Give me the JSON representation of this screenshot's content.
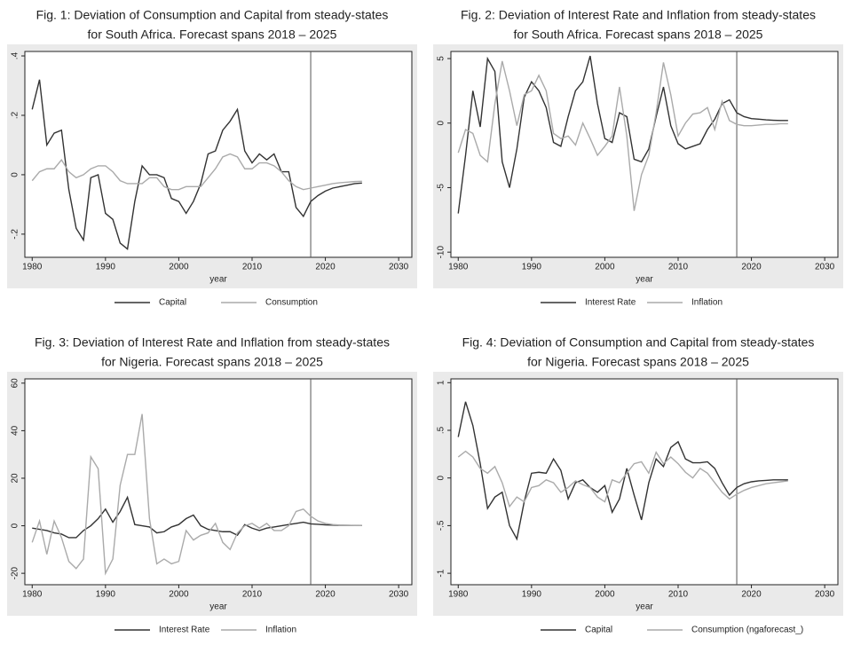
{
  "chart_data": [
    {
      "type": "line",
      "title": [
        "Fig. 1: Deviation of Consumption and Capital from steady-states",
        "for South Africa. Forecast spans 2018 – 2025"
      ],
      "xlabel": "year",
      "x": [
        1980,
        1981,
        1982,
        1983,
        1984,
        1985,
        1986,
        1987,
        1988,
        1989,
        1990,
        1991,
        1992,
        1993,
        1994,
        1995,
        1996,
        1997,
        1998,
        1999,
        2000,
        2001,
        2002,
        2003,
        2004,
        2005,
        2006,
        2007,
        2008,
        2009,
        2010,
        2011,
        2012,
        2013,
        2014,
        2015,
        2016,
        2017,
        2018,
        2019,
        2020,
        2021,
        2022,
        2023,
        2024,
        2025
      ],
      "xlim": [
        1979,
        2031.8
      ],
      "xticks": [
        1980,
        1990,
        2000,
        2010,
        2020,
        2030
      ],
      "ylim": [
        -0.278,
        0.415
      ],
      "yticks": [
        {
          "value": 0.4,
          "label": ".4"
        },
        {
          "value": 0.2,
          "label": ".2"
        },
        0,
        {
          "value": -0.2,
          "label": "-.2"
        }
      ],
      "vline": 2018,
      "series": [
        {
          "name": "Capital",
          "color": "#333333",
          "values": [
            0.22,
            0.32,
            0.1,
            0.14,
            0.15,
            -0.05,
            -0.18,
            -0.22,
            -0.01,
            0.0,
            -0.13,
            -0.15,
            -0.23,
            -0.25,
            -0.09,
            0.03,
            0.0,
            0.0,
            -0.01,
            -0.08,
            -0.09,
            -0.13,
            -0.09,
            -0.03,
            0.07,
            0.08,
            0.15,
            0.18,
            0.22,
            0.08,
            0.04,
            0.07,
            0.05,
            0.07,
            0.01,
            0.01,
            -0.11,
            -0.14,
            -0.09,
            -0.07,
            -0.055,
            -0.045,
            -0.04,
            -0.035,
            -0.03,
            -0.028
          ]
        },
        {
          "name": "Consumption",
          "color": "#aaaaaa",
          "values": [
            -0.02,
            0.01,
            0.02,
            0.02,
            0.05,
            0.01,
            -0.01,
            0.0,
            0.02,
            0.03,
            0.03,
            0.01,
            -0.02,
            -0.03,
            -0.03,
            -0.03,
            -0.01,
            -0.01,
            -0.04,
            -0.05,
            -0.05,
            -0.04,
            -0.04,
            -0.04,
            -0.01,
            0.02,
            0.06,
            0.07,
            0.06,
            0.02,
            0.02,
            0.04,
            0.04,
            0.03,
            0.01,
            -0.02,
            -0.04,
            -0.05,
            -0.045,
            -0.04,
            -0.035,
            -0.03,
            -0.027,
            -0.025,
            -0.023,
            -0.022
          ]
        }
      ]
    },
    {
      "type": "line",
      "title": [
        "Fig. 2: Deviation of Interest Rate and Inflation from steady-states",
        "for South Africa. Forecast spans 2018 – 2025"
      ],
      "xlabel": "year",
      "x": [
        1980,
        1981,
        1982,
        1983,
        1984,
        1985,
        1986,
        1987,
        1988,
        1989,
        1990,
        1991,
        1992,
        1993,
        1994,
        1995,
        1996,
        1997,
        1998,
        1999,
        2000,
        2001,
        2002,
        2003,
        2004,
        2005,
        2006,
        2007,
        2008,
        2009,
        2010,
        2011,
        2012,
        2013,
        2014,
        2015,
        2016,
        2017,
        2018,
        2019,
        2020,
        2021,
        2022,
        2023,
        2024,
        2025
      ],
      "xlim": [
        1979,
        2031.8
      ],
      "xticks": [
        1980,
        1990,
        2000,
        2010,
        2020,
        2030
      ],
      "ylim": [
        -10.4,
        5.55
      ],
      "yticks": [
        5,
        0,
        -5,
        -10
      ],
      "vline": 2018,
      "series": [
        {
          "name": "Interest Rate",
          "color": "#333333",
          "values": [
            -7,
            -2.5,
            2.5,
            -0.3,
            5,
            4,
            -3,
            -5,
            -2,
            2,
            3.2,
            2.5,
            1.2,
            -1.5,
            -1.8,
            0.5,
            2.5,
            3.2,
            5.2,
            1.5,
            -1.2,
            -1.5,
            0.8,
            0.5,
            -2.8,
            -3,
            -2,
            0.5,
            2.8,
            -0.2,
            -1.6,
            -2,
            -1.8,
            -1.6,
            -0.5,
            0.3,
            1.5,
            1.8,
            0.8,
            0.5,
            0.35,
            0.3,
            0.25,
            0.22,
            0.2,
            0.2
          ]
        },
        {
          "name": "Inflation",
          "color": "#aaaaaa",
          "values": [
            -2.3,
            -0.5,
            -0.8,
            -2.5,
            -3,
            1.5,
            4.8,
            2.5,
            -0.2,
            2.2,
            2.5,
            3.7,
            2.5,
            -0.8,
            -1.2,
            -1.0,
            -1.7,
            0,
            -1.2,
            -2.5,
            -1.8,
            -1,
            2.8,
            -1,
            -6.8,
            -4,
            -2.5,
            0.8,
            4.7,
            2.2,
            -1,
            0,
            0.7,
            0.8,
            1.2,
            -0.5,
            1.7,
            0.2,
            -0.1,
            -0.2,
            -0.2,
            -0.15,
            -0.1,
            -0.1,
            -0.05,
            -0.05
          ]
        }
      ]
    },
    {
      "type": "line",
      "title": [
        "Fig. 3: Deviation of Interest Rate and Inflation from steady-states",
        "for Nigeria. Forecast spans 2018 – 2025"
      ],
      "xlabel": "year",
      "x": [
        1980,
        1981,
        1982,
        1983,
        1984,
        1985,
        1986,
        1987,
        1988,
        1989,
        1990,
        1991,
        1992,
        1993,
        1994,
        1995,
        1996,
        1997,
        1998,
        1999,
        2000,
        2001,
        2002,
        2003,
        2004,
        2005,
        2006,
        2007,
        2008,
        2009,
        2010,
        2011,
        2012,
        2013,
        2014,
        2015,
        2016,
        2017,
        2018,
        2019,
        2020,
        2021,
        2022,
        2023,
        2024,
        2025
      ],
      "xlim": [
        1979,
        2031.8
      ],
      "xticks": [
        1980,
        1990,
        2000,
        2010,
        2020,
        2030
      ],
      "ylim": [
        -24.8,
        61.8
      ],
      "yticks": [
        60,
        40,
        20,
        0,
        -20
      ],
      "vline": 2018,
      "series": [
        {
          "name": "Interest Rate",
          "color": "#333333",
          "values": [
            -1,
            -1.5,
            -2,
            -3,
            -3.5,
            -5,
            -5,
            -2,
            0,
            3,
            7,
            1.5,
            6,
            12,
            0.5,
            0,
            -0.5,
            -3,
            -2.5,
            -0.5,
            0.5,
            3,
            4.5,
            0,
            -1.5,
            -2,
            -2.5,
            -2.5,
            -4,
            0.5,
            -1,
            -2,
            -1,
            -0.5,
            0,
            0.5,
            1,
            1.5,
            0.8,
            0.6,
            0.4,
            0.3,
            0.2,
            0.2,
            0.15,
            0.1
          ]
        },
        {
          "name": "Inflation",
          "color": "#aaaaaa",
          "values": [
            -7,
            2,
            -12,
            2,
            -5,
            -15,
            -18,
            -14,
            29,
            24,
            -20,
            -14,
            17,
            30,
            30,
            47,
            3,
            -16,
            -14,
            -16,
            -15,
            -2,
            -6,
            -4,
            -3,
            1,
            -7,
            -10,
            -3,
            0,
            1,
            -1,
            1,
            -2,
            -2,
            0,
            6,
            7,
            4,
            2,
            1,
            0.5,
            0.3,
            0.2,
            0.1,
            0.1
          ]
        }
      ]
    },
    {
      "type": "line",
      "title": [
        "Fig. 4: Deviation of Consumption and Capital from steady-states",
        "for Nigeria. Forecast spans 2018 – 2025"
      ],
      "xlabel": "year",
      "x": [
        1980,
        1981,
        1982,
        1983,
        1984,
        1985,
        1986,
        1987,
        1988,
        1989,
        1990,
        1991,
        1992,
        1993,
        1994,
        1995,
        1996,
        1997,
        1998,
        1999,
        2000,
        2001,
        2002,
        2003,
        2004,
        2005,
        2006,
        2007,
        2008,
        2009,
        2010,
        2011,
        2012,
        2013,
        2014,
        2015,
        2016,
        2017,
        2018,
        2019,
        2020,
        2021,
        2022,
        2023,
        2024,
        2025
      ],
      "xlim": [
        1979,
        2031.8
      ],
      "xticks": [
        1980,
        1990,
        2000,
        2010,
        2020,
        2030
      ],
      "ylim": [
        -1.12,
        1.04
      ],
      "yticks": [
        1,
        {
          "value": 0.5,
          "label": ".5"
        },
        0,
        {
          "value": -0.5,
          "label": "-.5"
        },
        -1
      ],
      "vline": 2018,
      "series": [
        {
          "name": "Capital",
          "color": "#333333",
          "values": [
            0.43,
            0.8,
            0.55,
            0.15,
            -0.32,
            -0.2,
            -0.15,
            -0.5,
            -0.64,
            -0.25,
            0.05,
            0.06,
            0.05,
            0.2,
            0.08,
            -0.22,
            -0.05,
            -0.02,
            -0.1,
            -0.15,
            -0.08,
            -0.36,
            -0.22,
            0.1,
            -0.18,
            -0.44,
            -0.05,
            0.2,
            0.12,
            0.32,
            0.38,
            0.2,
            0.16,
            0.16,
            0.17,
            0.1,
            -0.05,
            -0.18,
            -0.1,
            -0.06,
            -0.04,
            -0.03,
            -0.025,
            -0.02,
            -0.02,
            -0.02
          ]
        },
        {
          "name": "Consumption (ngaforecast_)",
          "color": "#aaaaaa",
          "values": [
            0.22,
            0.28,
            0.22,
            0.1,
            0.05,
            0.12,
            -0.05,
            -0.3,
            -0.2,
            -0.25,
            -0.1,
            -0.08,
            -0.02,
            -0.05,
            -0.15,
            -0.1,
            -0.03,
            -0.07,
            -0.1,
            -0.2,
            -0.25,
            -0.02,
            -0.05,
            0.05,
            0.15,
            0.17,
            0.05,
            0.27,
            0.15,
            0.22,
            0.15,
            0.06,
            0.0,
            0.1,
            0.05,
            -0.05,
            -0.15,
            -0.22,
            -0.17,
            -0.13,
            -0.1,
            -0.08,
            -0.06,
            -0.05,
            -0.04,
            -0.03
          ]
        }
      ]
    }
  ]
}
